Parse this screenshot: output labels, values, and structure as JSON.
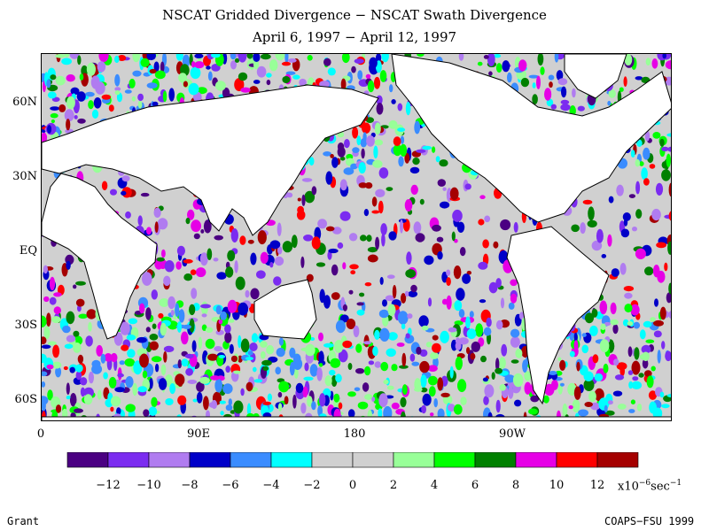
{
  "title_line1": "NSCAT Gridded Divergence − NSCAT Swath Divergence",
  "title_line2": "April 6, 1997 − April 12, 1997",
  "lat_labels": [
    "60N",
    "30N",
    "EQ",
    "30S",
    "60S"
  ],
  "lon_labels": [
    "0",
    "90E",
    "180",
    "90W"
  ],
  "colorbar": {
    "colors": [
      "#4b0082",
      "#7b2cf0",
      "#b07cf0",
      "#0000c8",
      "#3a8cff",
      "#00ffff",
      "#d0d0d0",
      "#d0d0d0",
      "#98ff98",
      "#00ff00",
      "#008000",
      "#e600e6",
      "#ff0000",
      "#a50000"
    ],
    "tick_labels": [
      "−12",
      "−10",
      "−8",
      "−6",
      "−4",
      "−2",
      "0",
      "2",
      "4",
      "6",
      "8",
      "10",
      "12"
    ],
    "units_base": "x10",
    "units_exp": "−6",
    "units_tail": "sec",
    "units_exp2": "−1"
  },
  "footer_left": "Grant",
  "footer_right": "COAPS−FSU 1999",
  "colors": {
    "land": "#ffffff",
    "coast": "#000000",
    "ocean_neutral": "#d0d0d0"
  }
}
